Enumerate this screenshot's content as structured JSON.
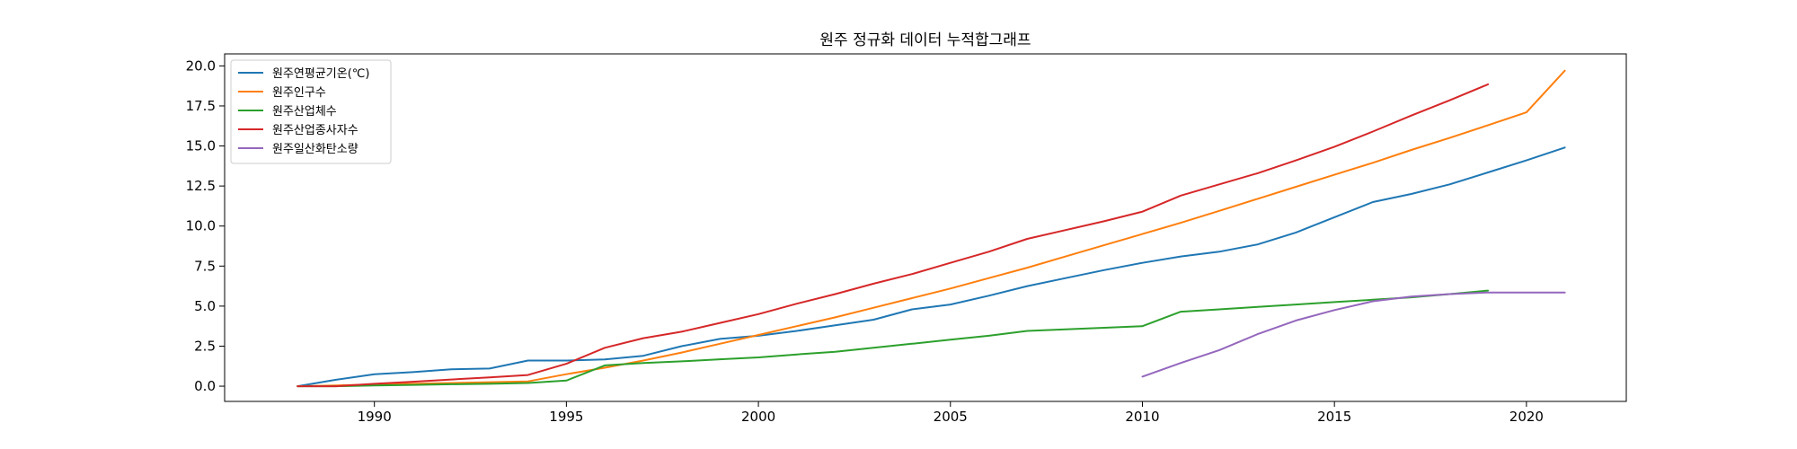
{
  "chart_data": {
    "type": "line",
    "title": "원주 정규화 데이터 누적합그래프",
    "xlabel": "",
    "ylabel": "",
    "xlim": [
      1986.1,
      2022.6
    ],
    "ylim": [
      -0.95,
      20.75
    ],
    "x_ticks": [
      1990,
      1995,
      2000,
      2005,
      2010,
      2015,
      2020
    ],
    "y_ticks": [
      0.0,
      2.5,
      5.0,
      7.5,
      10.0,
      12.5,
      15.0,
      17.5,
      20.0
    ],
    "x_tick_labels": [
      "1990",
      "1995",
      "2000",
      "2005",
      "2010",
      "2015",
      "2020"
    ],
    "y_tick_labels": [
      "0.0",
      "2.5",
      "5.0",
      "7.5",
      "10.0",
      "12.5",
      "15.0",
      "17.5",
      "20.0"
    ],
    "grid": false,
    "legend_position": "upper-left",
    "series": [
      {
        "name": "원주연평균기온(℃)",
        "color": "#1f77b4",
        "x": [
          1988,
          1989,
          1990,
          1991,
          1992,
          1993,
          1994,
          1995,
          1996,
          1997,
          1998,
          1999,
          2000,
          2001,
          2002,
          2003,
          2004,
          2005,
          2006,
          2007,
          2008,
          2009,
          2010,
          2011,
          2012,
          2013,
          2014,
          2015,
          2016,
          2017,
          2018,
          2019,
          2020,
          2021
        ],
        "y": [
          0.0,
          0.4,
          0.75,
          0.88,
          1.05,
          1.1,
          1.6,
          1.6,
          1.67,
          1.9,
          2.5,
          2.95,
          3.15,
          3.45,
          3.8,
          4.15,
          4.8,
          5.1,
          5.65,
          6.25,
          6.75,
          7.25,
          7.7,
          8.1,
          8.4,
          8.85,
          9.6,
          10.55,
          11.5,
          12.0,
          12.6,
          13.35,
          14.1,
          14.9
        ]
      },
      {
        "name": "원주인구수",
        "color": "#ff7f0e",
        "x": [
          1988,
          1989,
          1990,
          1991,
          1992,
          1993,
          1994,
          1995,
          1996,
          1997,
          1998,
          1999,
          2000,
          2001,
          2002,
          2003,
          2004,
          2005,
          2006,
          2007,
          2008,
          2009,
          2010,
          2011,
          2012,
          2013,
          2014,
          2015,
          2016,
          2017,
          2018,
          2019,
          2020,
          2021
        ],
        "y": [
          0.0,
          0.05,
          0.1,
          0.15,
          0.2,
          0.25,
          0.3,
          0.75,
          1.15,
          1.6,
          2.1,
          2.65,
          3.2,
          3.75,
          4.3,
          4.9,
          5.5,
          6.1,
          6.75,
          7.4,
          8.1,
          8.8,
          9.5,
          10.2,
          10.95,
          11.7,
          12.45,
          13.2,
          13.95,
          14.75,
          15.5,
          16.3,
          17.1,
          19.7
        ]
      },
      {
        "name": "원주산업체수",
        "color": "#2ca02c",
        "x": [
          1988,
          1989,
          1990,
          1991,
          1992,
          1993,
          1994,
          1995,
          1996,
          1997,
          1998,
          1999,
          2000,
          2001,
          2002,
          2003,
          2004,
          2005,
          2006,
          2007,
          2008,
          2009,
          2010,
          2011,
          2012,
          2013,
          2014,
          2015,
          2016,
          2017,
          2018,
          2019
        ],
        "y": [
          0.0,
          0.0,
          0.05,
          0.08,
          0.12,
          0.15,
          0.2,
          0.35,
          1.3,
          1.45,
          1.55,
          1.68,
          1.8,
          1.98,
          2.15,
          2.4,
          2.65,
          2.9,
          3.15,
          3.45,
          3.55,
          3.65,
          3.75,
          4.65,
          4.8,
          4.95,
          5.1,
          5.25,
          5.4,
          5.55,
          5.75,
          5.97
        ]
      },
      {
        "name": "원주산업종사자수",
        "color": "#d62728",
        "x": [
          1988,
          1989,
          1990,
          1991,
          1992,
          1993,
          1994,
          1995,
          1996,
          1997,
          1998,
          1999,
          2000,
          2001,
          2002,
          2003,
          2004,
          2005,
          2006,
          2007,
          2008,
          2009,
          2010,
          2011,
          2012,
          2013,
          2014,
          2015,
          2016,
          2017,
          2018,
          2019
        ],
        "y": [
          0.0,
          0.0,
          0.15,
          0.28,
          0.42,
          0.55,
          0.7,
          1.4,
          2.4,
          3.0,
          3.4,
          3.95,
          4.5,
          5.15,
          5.75,
          6.4,
          7.0,
          7.7,
          8.4,
          9.2,
          9.75,
          10.3,
          10.9,
          11.9,
          12.6,
          13.3,
          14.1,
          14.95,
          15.9,
          16.9,
          17.85,
          18.85
        ]
      },
      {
        "name": "원주일산화탄소량",
        "color": "#9467bd",
        "x": [
          2010,
          2011,
          2012,
          2013,
          2014,
          2015,
          2016,
          2017,
          2018,
          2019,
          2020,
          2021
        ],
        "y": [
          0.6,
          1.45,
          2.25,
          3.25,
          4.1,
          4.75,
          5.3,
          5.6,
          5.75,
          5.85,
          5.85,
          5.85
        ]
      }
    ]
  }
}
